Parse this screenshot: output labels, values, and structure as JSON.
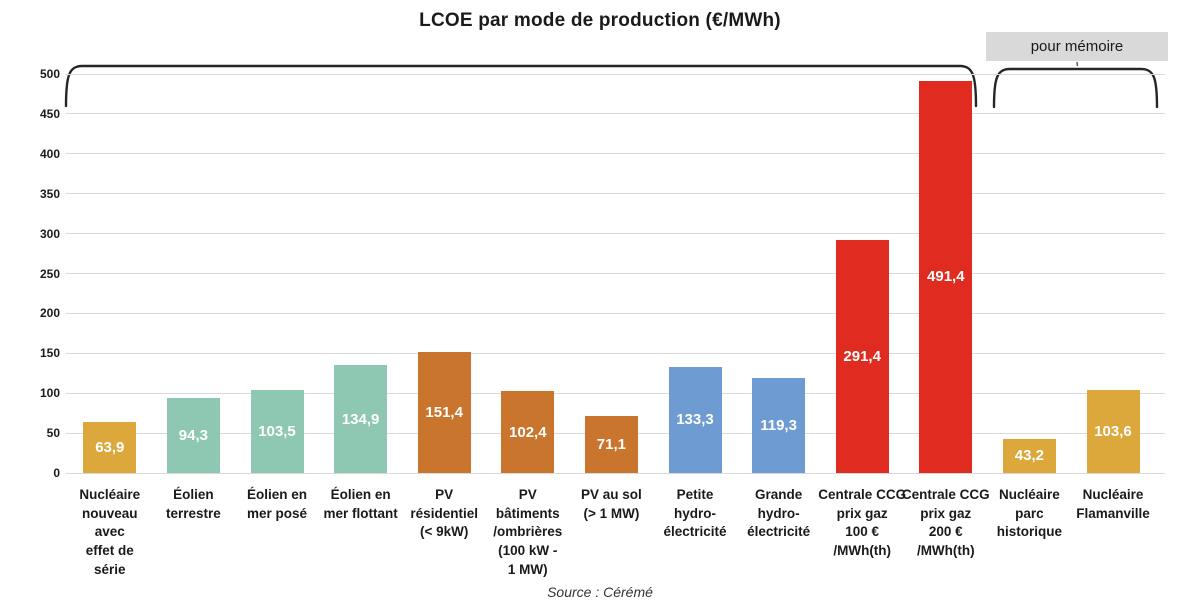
{
  "chart_data": {
    "type": "bar",
    "title": "LCOE par mode de production (€/MWh)",
    "categories": [
      "Nucléaire\nnouveau\navec\neffet de\nsérie",
      "Éolien\nterrestre",
      "Éolien en\nmer posé",
      "Éolien en\nmer flottant",
      "PV\nrésidentiel\n(< 9kW)",
      "PV\nbâtiments\n/ombrières\n(100 kW -\n1 MW)",
      "PV au sol\n(> 1 MW)",
      "Petite\nhydro-\nélectricité",
      "Grande\nhydro-\nélectricité",
      "Centrale CCG\nprix gaz\n100 €\n/MWh(th)",
      "Centrale CCG\nprix gaz\n200 €\n/MWh(th)",
      "Nucléaire\nparc\nhistorique",
      "Nucléaire\nFlamanville"
    ],
    "values": [
      63.9,
      94.3,
      103.5,
      134.9,
      151.4,
      102.4,
      71.1,
      133.3,
      119.3,
      291.4,
      491.4,
      43.2,
      103.6
    ],
    "value_labels": [
      "63,9",
      "94,3",
      "103,5",
      "134,9",
      "151,4",
      "102,4",
      "71,1",
      "133,3",
      "119,3",
      "291,4",
      "491,4",
      "43,2",
      "103,6"
    ],
    "bar_colors": [
      "#DCA83C",
      "#8FC8B2",
      "#8FC8B2",
      "#8FC8B2",
      "#C9752D",
      "#C9752D",
      "#C9752D",
      "#6E9CD2",
      "#6E9CD2",
      "#E02B20",
      "#E02B20",
      "#DCA83C",
      "#DCA83C"
    ],
    "yticks": [
      0,
      50,
      100,
      150,
      200,
      250,
      300,
      350,
      400,
      450,
      500
    ],
    "ylim": [
      0,
      500
    ],
    "grid": true,
    "legend_position": "none",
    "annotation": {
      "pour_memoire": "pour mémoire",
      "pour_memoire_bar_indices": [
        11,
        12
      ]
    },
    "source": "Source : Cérémé"
  },
  "colors": {
    "grid": "#D9D9D9",
    "annotation_background": "#D9D9D9",
    "bracket": "#262626",
    "value_label_text": "#FFFFFF",
    "axis_text": "#1A1A1A"
  }
}
